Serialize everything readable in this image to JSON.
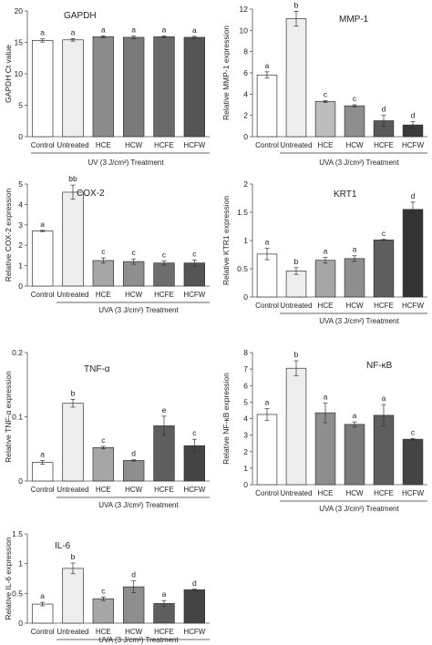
{
  "chart_data": [
    {
      "id": "gapdh",
      "type": "bar",
      "title": "GAPDH",
      "ylabel": "GAPDH Ct value",
      "xlabel": "UV (3 J/cm²) Treatment",
      "categories": [
        "Control",
        "Untreated",
        "HCE",
        "HCW",
        "HCFE",
        "HCFW"
      ],
      "values": [
        15.3,
        15.4,
        15.9,
        15.8,
        15.9,
        15.8
      ],
      "errors": [
        0.25,
        0.2,
        0.15,
        0.2,
        0.15,
        0.15
      ],
      "letters": [
        "a",
        "a",
        "a",
        "a",
        "a",
        "a"
      ],
      "fills": [
        "#ffffff",
        "#eeeeee",
        "#8c8c8c",
        "#7a7a7a",
        "#6a6a6a",
        "#555555"
      ],
      "ylim": [
        0,
        20
      ],
      "yticks": [
        0,
        5,
        10,
        15,
        20
      ]
    },
    {
      "id": "mmp1",
      "type": "bar",
      "title": "MMP-1",
      "ylabel": "Relative MMP-1 expression",
      "xlabel": "UVA (3 J/cm²) Treatment",
      "categories": [
        "Control",
        "Untreated",
        "HCE",
        "HCW",
        "HCFE",
        "HCFW"
      ],
      "values": [
        5.8,
        11.1,
        3.3,
        2.9,
        1.5,
        1.1
      ],
      "errors": [
        0.3,
        0.7,
        0.1,
        0.1,
        0.5,
        0.3
      ],
      "letters": [
        "a",
        "b",
        "c",
        "c",
        "d",
        "d"
      ],
      "fills": [
        "#ffffff",
        "#eeeeee",
        "#bdbdbd",
        "#8e8e8e",
        "#5a5a5a",
        "#3a3a3a"
      ],
      "ylim": [
        0,
        12
      ],
      "yticks": [
        0,
        2,
        4,
        6,
        8,
        10,
        12
      ]
    },
    {
      "id": "cox2",
      "type": "bar",
      "title": "COX-2",
      "ylabel": "Relative COX-2 expression",
      "xlabel": "UVA (3 J/cm²) Treatment",
      "categories": [
        "Control",
        "Untreated",
        "HCE",
        "HCW",
        "HCFE",
        "HCFW"
      ],
      "values": [
        2.7,
        4.6,
        1.25,
        1.2,
        1.13,
        1.13
      ],
      "errors": [
        0.03,
        0.35,
        0.13,
        0.13,
        0.1,
        0.15
      ],
      "letters": [
        "a",
        "bb",
        "c",
        "c",
        "c",
        "c"
      ],
      "fills": [
        "#ffffff",
        "#eeeeee",
        "#a6a6a6",
        "#8e8e8e",
        "#6e6e6e",
        "#555555"
      ],
      "ylim": [
        0,
        5
      ],
      "yticks": [
        0,
        1,
        2,
        3,
        4,
        5
      ]
    },
    {
      "id": "krt1",
      "type": "bar",
      "title": "KRT1",
      "ylabel": "Relative KTR1 expression",
      "xlabel": "UVA (3 J/cm²) Treatment",
      "categories": [
        "Control",
        "Untreated",
        "HCE",
        "HCW",
        "HCFE",
        "HCFW"
      ],
      "values": [
        0.76,
        0.46,
        0.65,
        0.68,
        1.01,
        1.55
      ],
      "errors": [
        0.1,
        0.06,
        0.05,
        0.05,
        0.01,
        0.13
      ],
      "letters": [
        "a",
        "b",
        "a",
        "a",
        "c",
        "d"
      ],
      "fills": [
        "#ffffff",
        "#eeeeee",
        "#a6a6a6",
        "#8e8e8e",
        "#5e5e5e",
        "#333333"
      ],
      "ylim": [
        0,
        2
      ],
      "yticks": [
        0,
        0.5,
        1,
        1.5,
        2
      ]
    },
    {
      "id": "tnfa",
      "type": "bar",
      "title": "TNF-α",
      "ylabel": "Relative TNF-α expression",
      "xlabel": "UVA (3 J/cm²) Treatment",
      "categories": [
        "Control",
        "Untreated",
        "HCE",
        "HCW",
        "HCFE",
        "HCFW"
      ],
      "values": [
        0.029,
        0.121,
        0.052,
        0.032,
        0.086,
        0.055
      ],
      "errors": [
        0.003,
        0.006,
        0.002,
        0.001,
        0.015,
        0.01
      ],
      "letters": [
        "a",
        "b",
        "c",
        "d",
        "e",
        "c"
      ],
      "fills": [
        "#ffffff",
        "#eeeeee",
        "#a6a6a6",
        "#8e8e8e",
        "#5e5e5e",
        "#444444"
      ],
      "ylim": [
        0,
        0.2
      ],
      "yticks": [
        0,
        0.1,
        0.2
      ]
    },
    {
      "id": "nfkb",
      "type": "bar",
      "title": "NF-κB",
      "ylabel": "Relative NF-κB expression",
      "xlabel": "UVA (3 J/cm²) Treatment",
      "categories": [
        "Control",
        "Untreated",
        "HCE",
        "HCW",
        "HCFE",
        "HCFW"
      ],
      "values": [
        4.25,
        7.05,
        4.35,
        3.65,
        4.2,
        2.75
      ],
      "errors": [
        0.35,
        0.45,
        0.6,
        0.15,
        0.65,
        0.05
      ],
      "letters": [
        "a",
        "b",
        "a",
        "a",
        "a",
        "c"
      ],
      "fills": [
        "#ffffff",
        "#eeeeee",
        "#8e8e8e",
        "#7a7a7a",
        "#5e5e5e",
        "#444444"
      ],
      "ylim": [
        0,
        8
      ],
      "yticks": [
        0,
        1,
        2,
        3,
        4,
        5,
        6,
        7,
        8
      ]
    },
    {
      "id": "il6",
      "type": "bar",
      "title": "IL-6",
      "ylabel": "Relative IL-6 expression",
      "xlabel": "UVA (3 J/cm²) Treatment",
      "categories": [
        "Control",
        "Untreated",
        "HCE",
        "HCW",
        "HCFE",
        "HCFW"
      ],
      "values": [
        0.32,
        0.92,
        0.41,
        0.61,
        0.33,
        0.56
      ],
      "errors": [
        0.03,
        0.09,
        0.03,
        0.1,
        0.05,
        0.01
      ],
      "letters": [
        "a",
        "b",
        "c",
        "d",
        "a",
        "d"
      ],
      "fills": [
        "#ffffff",
        "#eeeeee",
        "#a6a6a6",
        "#8e8e8e",
        "#5e5e5e",
        "#444444"
      ],
      "ylim": [
        0,
        1.5
      ],
      "yticks": [
        0,
        0.5,
        1,
        1.5
      ]
    }
  ]
}
